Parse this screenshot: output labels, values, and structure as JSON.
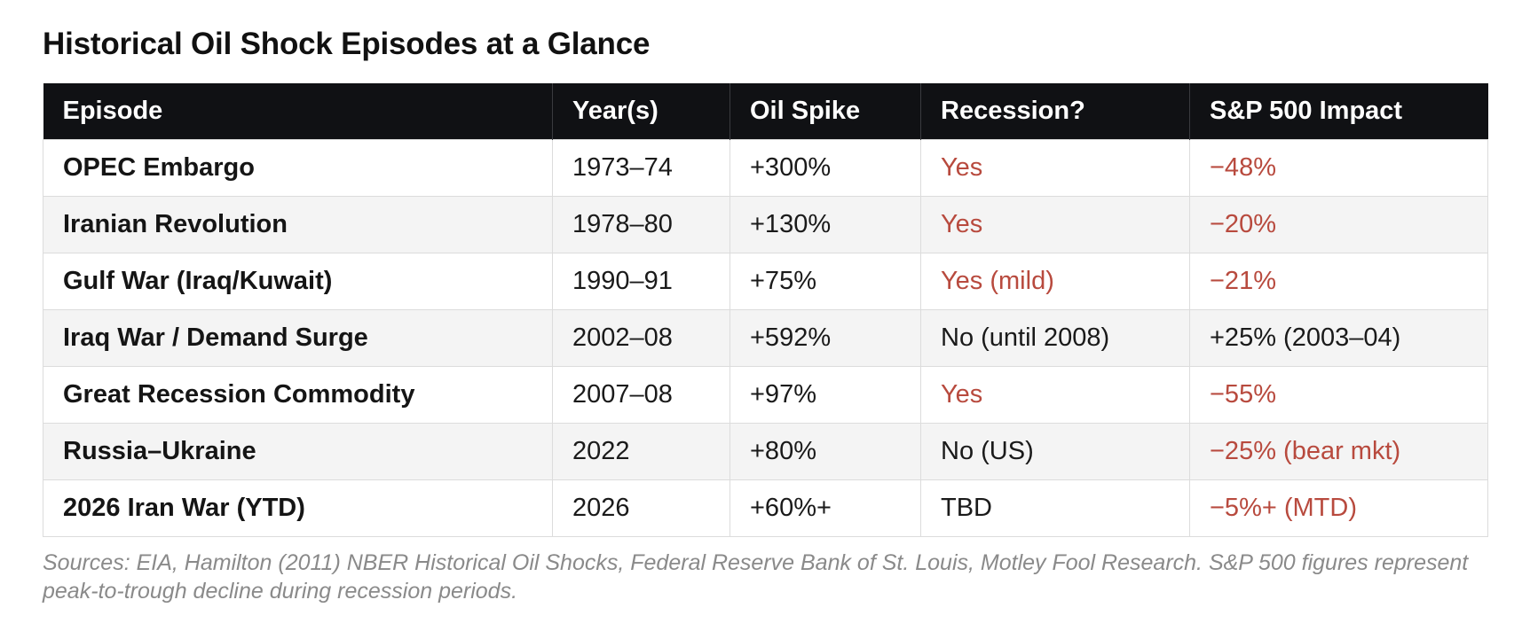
{
  "title": "Historical Oil Shock Episodes at a Glance",
  "table": {
    "headers": [
      "Episode",
      "Year(s)",
      "Oil Spike",
      "Recession?",
      "S&P 500 Impact"
    ],
    "rows": [
      {
        "episode": "OPEC Embargo",
        "years": "1973–74",
        "spike": "+300%",
        "recession": "Yes",
        "recession_negative": true,
        "impact": "−48%",
        "impact_negative": true
      },
      {
        "episode": "Iranian Revolution",
        "years": "1978–80",
        "spike": "+130%",
        "recession": "Yes",
        "recession_negative": true,
        "impact": "−20%",
        "impact_negative": true
      },
      {
        "episode": "Gulf War (Iraq/Kuwait)",
        "years": "1990–91",
        "spike": "+75%",
        "recession": "Yes (mild)",
        "recession_negative": true,
        "impact": "−21%",
        "impact_negative": true
      },
      {
        "episode": "Iraq War / Demand Surge",
        "years": "2002–08",
        "spike": "+592%",
        "recession": "No (until 2008)",
        "recession_negative": false,
        "impact": "+25% (2003–04)",
        "impact_negative": false
      },
      {
        "episode": "Great Recession Commodity",
        "years": "2007–08",
        "spike": "+97%",
        "recession": "Yes",
        "recession_negative": true,
        "impact": "−55%",
        "impact_negative": true
      },
      {
        "episode": "Russia–Ukraine",
        "years": "2022",
        "spike": "+80%",
        "recession": "No (US)",
        "recession_negative": false,
        "impact": "−25% (bear mkt)",
        "impact_negative": true
      },
      {
        "episode": "2026 Iran War (YTD)",
        "years": "2026",
        "spike": "+60%+",
        "recession": "TBD",
        "recession_negative": false,
        "impact": "−5%+ (MTD)",
        "impact_negative": true
      }
    ]
  },
  "footnote": "Sources: EIA, Hamilton (2011) NBER Historical Oil Shocks, Federal Reserve Bank of St. Louis, Motley Fool Research. S&P 500 figures represent peak-to-trough decline during recession periods.",
  "colors": {
    "header_bg": "#101114",
    "negative_text": "#b84a3e",
    "alt_row_bg": "#f4f4f4",
    "footnote_text": "#8a8a8a"
  }
}
